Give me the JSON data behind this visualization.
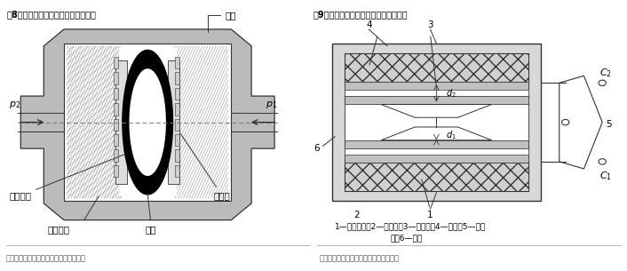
{
  "fig_width": 7.06,
  "fig_height": 3.05,
  "dpi": 100,
  "bg_color": "#ffffff",
  "title_left": "图8：差动电容式压力传感器的结构图",
  "title_right": "图9：差动电容式加速度传感器的结构图",
  "source_text": "资料来源：《机器人传感器》（沈明路）",
  "legend_right_line1": "1—固定极板；2—绝缘楔；3—质量块；4—弹簧；5—输出",
  "legend_right_line2": "端；6—壳体",
  "line_color": "#333333",
  "gray_outer": "#b0b0b0",
  "gray_hatch": "#c8c8c8",
  "gray_band": "#c0c0c0",
  "gray_light": "#e0e0e0"
}
